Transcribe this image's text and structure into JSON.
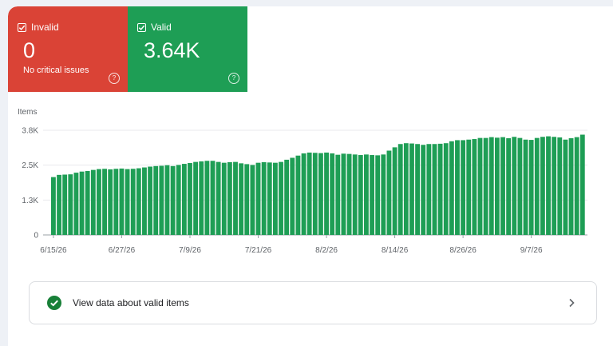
{
  "tiles": {
    "invalid": {
      "label": "Invalid",
      "value": "0",
      "subtext": "No critical issues",
      "checked": true,
      "color": "#da4336",
      "icon": "help-icon"
    },
    "valid": {
      "label": "Valid",
      "value": "3.64K",
      "checked": true,
      "color": "#1e9e55",
      "icon": "help-icon"
    }
  },
  "chart": {
    "axis_title": "Items"
  },
  "chart_data": {
    "type": "bar",
    "ylabel": "Items",
    "ylim": [
      0,
      3800
    ],
    "y_ticks": [
      "0",
      "1.3K",
      "2.5K",
      "3.8K"
    ],
    "x_tick_labels": [
      "6/15/26",
      "6/27/26",
      "7/9/26",
      "7/21/26",
      "8/2/26",
      "8/14/26",
      "8/26/26",
      "9/7/26"
    ],
    "bar_color": "#1e9e55",
    "start_date": "6/15/26",
    "values": [
      2100,
      2180,
      2190,
      2200,
      2260,
      2300,
      2320,
      2360,
      2390,
      2400,
      2380,
      2400,
      2410,
      2390,
      2400,
      2420,
      2450,
      2480,
      2500,
      2510,
      2530,
      2500,
      2540,
      2580,
      2610,
      2650,
      2670,
      2690,
      2690,
      2650,
      2620,
      2640,
      2650,
      2600,
      2570,
      2540,
      2620,
      2640,
      2630,
      2620,
      2650,
      2730,
      2800,
      2880,
      2960,
      2990,
      2980,
      2970,
      2990,
      2960,
      2910,
      2950,
      2940,
      2920,
      2900,
      2920,
      2900,
      2890,
      2920,
      3060,
      3180,
      3300,
      3330,
      3320,
      3300,
      3270,
      3300,
      3300,
      3310,
      3330,
      3400,
      3440,
      3440,
      3460,
      3480,
      3520,
      3520,
      3550,
      3530,
      3550,
      3510,
      3560,
      3520,
      3460,
      3450,
      3520,
      3560,
      3580,
      3560,
      3540,
      3460,
      3510,
      3550,
      3640
    ]
  },
  "link": {
    "label": "View data about valid items",
    "icon": "check-circle-icon",
    "chevron": "chevron-right-icon"
  }
}
